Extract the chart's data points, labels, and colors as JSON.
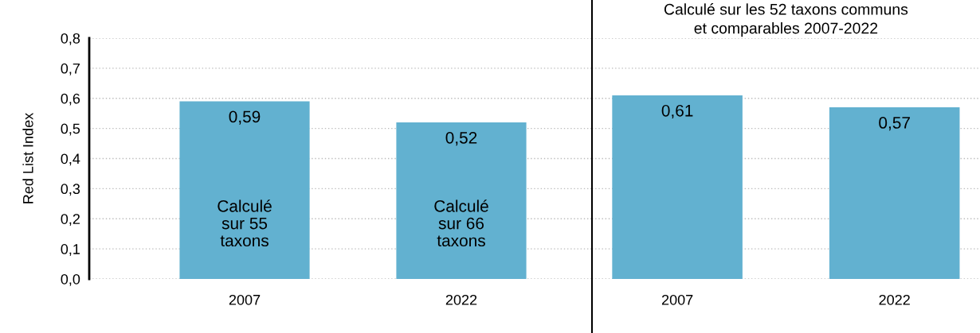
{
  "chart_data": [
    {
      "type": "bar",
      "ylabel": "Red List Index",
      "categories": [
        "2007",
        "2022"
      ],
      "values": [
        0.59,
        0.52
      ],
      "value_labels": [
        "0,59",
        "0,52"
      ],
      "color": "#62b1d0",
      "ylim": [
        0,
        0.8
      ],
      "yticks": [
        {
          "value": 0,
          "label": "0,0"
        },
        {
          "value": 0.1,
          "label": "0,1"
        },
        {
          "value": 0.2,
          "label": "0,2"
        },
        {
          "value": 0.3,
          "label": "0,3"
        },
        {
          "value": 0.4,
          "label": "0,4"
        },
        {
          "value": 0.5,
          "label": "0,5"
        },
        {
          "value": 0.6,
          "label": "0,6"
        },
        {
          "value": 0.7,
          "label": "0,7"
        },
        {
          "value": 0.8,
          "label": "0,8"
        }
      ],
      "grid": "y",
      "annotations": [
        "Calculé\nsur 55\ntaxons",
        "Calculé\nsur 66\ntaxons"
      ]
    },
    {
      "type": "bar",
      "title": "Calculé sur les 52 taxons communs\net comparables 2007-2022",
      "categories": [
        "2007",
        "2022"
      ],
      "values": [
        0.61,
        0.57
      ],
      "value_labels": [
        "0,61",
        "0,57"
      ],
      "color": "#62b1d0",
      "ylim": [
        0,
        0.8
      ],
      "yticks": [
        0,
        0.1,
        0.2,
        0.3,
        0.4,
        0.5,
        0.6,
        0.7,
        0.8
      ],
      "tick_labels": "x",
      "grid": "y"
    }
  ]
}
